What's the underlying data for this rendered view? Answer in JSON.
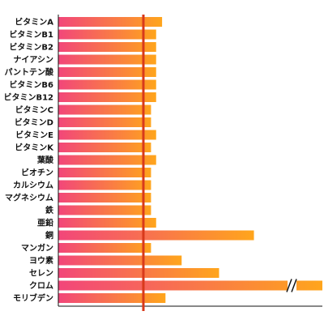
{
  "chart_data": {
    "type": "bar",
    "orientation": "horizontal",
    "title": "",
    "xlabel": "",
    "ylabel": "",
    "categories": [
      "ビタミンA",
      "ビタミンB1",
      "ビタミンB2",
      "ナイアシン",
      "パントテン酸",
      "ビタミンB6",
      "ビタミンB12",
      "ビタミンC",
      "ビタミンD",
      "ビタミンE",
      "ビタミンK",
      "葉酸",
      "ビオチン",
      "カルシウム",
      "マグネシウム",
      "鉄",
      "亜鉛",
      "銅",
      "マンガン",
      "ヨウ素",
      "セレン",
      "クロム",
      "モリブデン"
    ],
    "values": [
      122,
      115,
      115,
      115,
      115,
      115,
      115,
      109,
      109,
      115,
      109,
      115,
      109,
      109,
      109,
      109,
      115,
      230,
      109,
      145,
      189,
      null,
      126
    ],
    "reference_line": 100,
    "axis_break": {
      "category": "クロム",
      "exceeds_axis": true
    },
    "xlim": [
      0,
      310
    ],
    "grid": false,
    "legend": "none"
  },
  "colors": {
    "bar_start": "#f2467a",
    "bar_end": "#ffa51c",
    "reference_line": "#d8391b",
    "axis": "#111111",
    "break_gap": "#ffffff"
  }
}
